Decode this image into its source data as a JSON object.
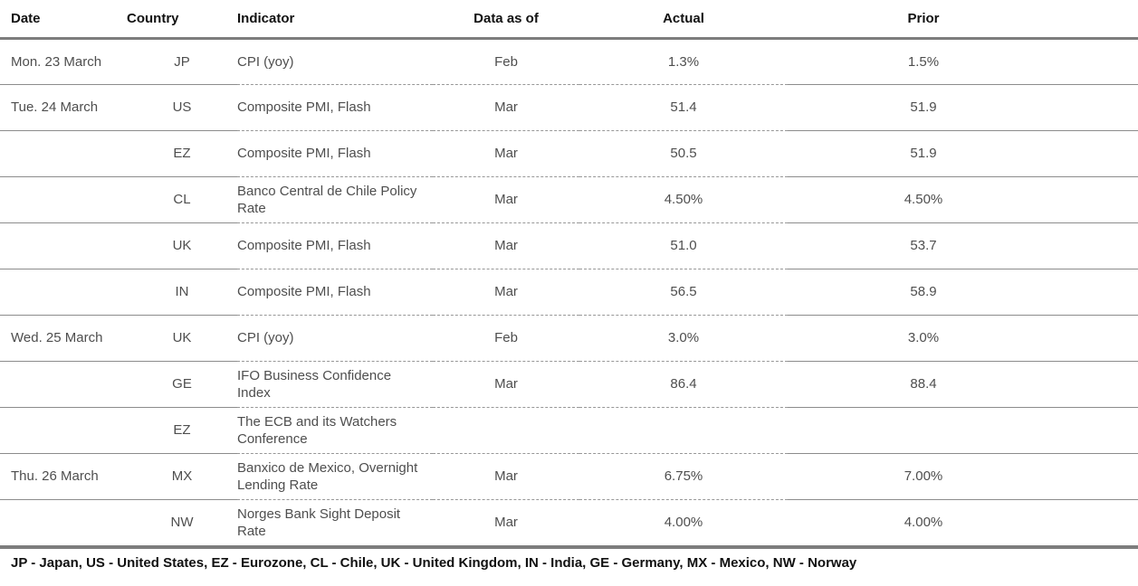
{
  "table": {
    "columns": [
      "Date",
      "Country",
      "Indicator",
      "Data as of",
      "Actual",
      "Prior"
    ],
    "rows": [
      {
        "date": "Mon. 23 March",
        "country": "JP",
        "indicator": "CPI (yoy)",
        "data_as_of": "Feb",
        "actual": "1.3%",
        "prior": "1.5%"
      },
      {
        "date": "Tue. 24 March",
        "country": "US",
        "indicator": "Composite PMI, Flash",
        "data_as_of": "Mar",
        "actual": "51.4",
        "prior": "51.9"
      },
      {
        "date": "",
        "country": "EZ",
        "indicator": "Composite PMI, Flash",
        "data_as_of": "Mar",
        "actual": "50.5",
        "prior": "51.9"
      },
      {
        "date": "",
        "country": "CL",
        "indicator": "Banco Central de Chile Policy Rate",
        "data_as_of": "Mar",
        "actual": "4.50%",
        "prior": "4.50%"
      },
      {
        "date": "",
        "country": "UK",
        "indicator": "Composite PMI, Flash",
        "data_as_of": "Mar",
        "actual": "51.0",
        "prior": "53.7"
      },
      {
        "date": "",
        "country": "IN",
        "indicator": "Composite PMI, Flash",
        "data_as_of": "Mar",
        "actual": "56.5",
        "prior": "58.9"
      },
      {
        "date": "Wed. 25 March",
        "country": "UK",
        "indicator": "CPI (yoy)",
        "data_as_of": "Feb",
        "actual": "3.0%",
        "prior": "3.0%"
      },
      {
        "date": "",
        "country": "GE",
        "indicator": "IFO Business Confidence Index",
        "data_as_of": "Mar",
        "actual": "86.4",
        "prior": "88.4"
      },
      {
        "date": "",
        "country": "EZ",
        "indicator": "The ECB and its Watchers Conference",
        "data_as_of": "",
        "actual": "",
        "prior": ""
      },
      {
        "date": "Thu. 26 March",
        "country": "MX",
        "indicator": "Banxico de Mexico, Overnight Lending Rate",
        "data_as_of": "Mar",
        "actual": "6.75%",
        "prior": "7.00%"
      },
      {
        "date": "",
        "country": "NW",
        "indicator": "Norges Bank Sight Deposit Rate",
        "data_as_of": "Mar",
        "actual": "4.00%",
        "prior": "4.00%"
      }
    ]
  },
  "footer": {
    "legend": "JP - Japan, US - United States, EZ - Eurozone, CL - Chile, UK - United Kingdom, IN - India, GE - Germany, MX - Mexico, NW - Norway"
  },
  "colors": {
    "header_text": "#111111",
    "body_text": "#4e4e4e",
    "thick_rule": "#7d7d7d",
    "solid_separator": "#8c8c8c",
    "dashed_separator": "#979797",
    "background": "#ffffff"
  }
}
